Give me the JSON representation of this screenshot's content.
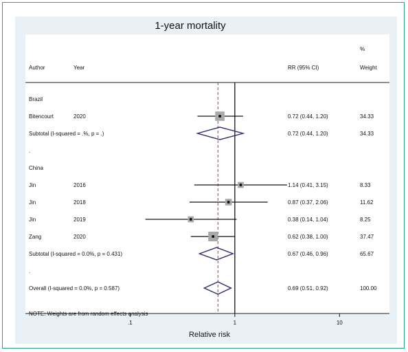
{
  "chart_data": {
    "type": "forest",
    "title": "1-year mortality",
    "headers": {
      "author": "Author",
      "year": "Year",
      "rr": "RR (95% CI)",
      "weight_top": "%",
      "weight": "Weight"
    },
    "xlabel": "Relative risk",
    "xscale": "log",
    "xticks": [
      ".1",
      "1",
      "10"
    ],
    "xlim": [
      0.01,
      30
    ],
    "null_line": 1,
    "overall_line": 0.69,
    "groups": [
      {
        "name": "Brazil",
        "studies": [
          {
            "author": "Bitencourt",
            "year": "2020",
            "rr": 0.72,
            "lo": 0.44,
            "hi": 1.2,
            "rr_text": "0.72 (0.44, 1.20)",
            "weight": "34.33"
          }
        ],
        "subtotal": {
          "label": "Subtotal  (I-squared = .%, p = .)",
          "rr": 0.72,
          "lo": 0.44,
          "hi": 1.2,
          "rr_text": "0.72 (0.44, 1.20)",
          "weight": "34.33"
        },
        "separator": "."
      },
      {
        "name": "China",
        "studies": [
          {
            "author": "Jin",
            "year": "2016",
            "rr": 1.14,
            "lo": 0.41,
            "hi": 3.15,
            "rr_text": "1.14 (0.41, 3.15)",
            "weight": "8.33"
          },
          {
            "author": "Jin",
            "year": "2018",
            "rr": 0.87,
            "lo": 0.37,
            "hi": 2.06,
            "rr_text": "0.87 (0.37, 2.06)",
            "weight": "11.62"
          },
          {
            "author": "Jin",
            "year": "2019",
            "rr": 0.38,
            "lo": 0.14,
            "hi": 1.04,
            "rr_text": "0.38 (0.14, 1.04)",
            "weight": "8.25"
          },
          {
            "author": "Zang",
            "year": "2020",
            "rr": 0.62,
            "lo": 0.38,
            "hi": 1.0,
            "rr_text": "0.62 (0.38, 1.00)",
            "weight": "37.47"
          }
        ],
        "subtotal": {
          "label": "Subtotal  (I-squared = 0.0%, p = 0.431)",
          "rr": 0.67,
          "lo": 0.46,
          "hi": 0.96,
          "rr_text": "0.67 (0.46, 0.96)",
          "weight": "65.67"
        },
        "separator": "."
      }
    ],
    "overall": {
      "label": "Overall  (I-squared = 0.0%, p = 0.587)",
      "rr": 0.69,
      "lo": 0.51,
      "hi": 0.92,
      "rr_text": "0.69 (0.51, 0.92)",
      "weight": "100.00"
    },
    "note": "NOTE: Weights are from random effects analysis",
    "colors": {
      "frame": "#2e9e8f",
      "panel": "#eaf1f6",
      "diamond": "#2a2a6a",
      "dashed": "#b03040",
      "box": "#a9a9a9"
    }
  }
}
